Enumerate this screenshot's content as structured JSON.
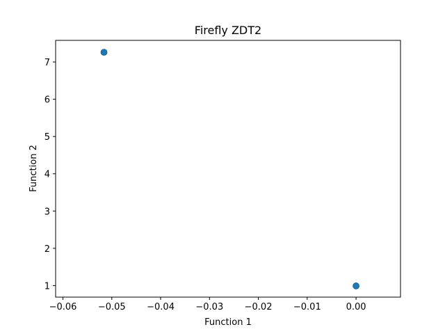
{
  "chart_data": {
    "type": "scatter",
    "title": "Firefly ZDT2",
    "xlabel": "Function 1",
    "ylabel": "Function 2",
    "xlim": [
      -0.0615,
      0.0091
    ],
    "ylim": [
      0.69,
      7.58
    ],
    "xticks": [
      -0.06,
      -0.05,
      -0.04,
      -0.03,
      -0.02,
      -0.01,
      0.0
    ],
    "xtick_labels": [
      "−0.06",
      "−0.05",
      "−0.04",
      "−0.03",
      "−0.02",
      "−0.01",
      "0.00"
    ],
    "yticks": [
      1,
      2,
      3,
      4,
      5,
      6,
      7
    ],
    "ytick_labels": [
      "1",
      "2",
      "3",
      "4",
      "5",
      "6",
      "7"
    ],
    "grid": false,
    "series": [
      {
        "color": "#1f77b4",
        "points": [
          {
            "x": -0.0516,
            "y": 7.26
          },
          {
            "x": 0.0,
            "y": 0.99
          }
        ]
      }
    ]
  }
}
